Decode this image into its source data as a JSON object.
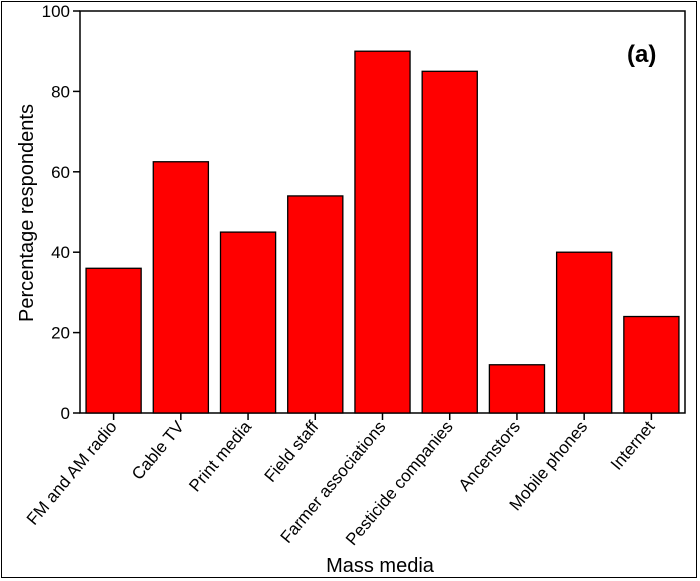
{
  "chart_data": {
    "type": "bar",
    "panel_label": "(a)",
    "xlabel": "Mass media",
    "ylabel": "Percentage respondents",
    "categories": [
      "FM and AM radio",
      "Cable TV",
      "Print media",
      "Field staff",
      "Farmer associations",
      "Pesticide companies",
      "Ancenstors",
      "Mobile phones",
      "Internet"
    ],
    "values": [
      36,
      62.5,
      45,
      54,
      90,
      85,
      12,
      40,
      24
    ],
    "ylim": [
      0,
      100
    ],
    "yticks": [
      0,
      20,
      40,
      60,
      80,
      100
    ],
    "grid": false,
    "bar_color": "#ff0000",
    "edge_color": "#000000"
  }
}
